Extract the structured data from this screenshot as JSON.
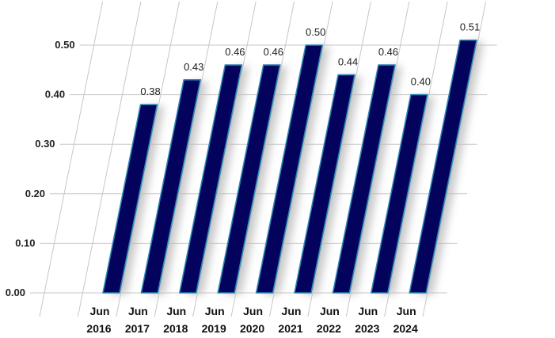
{
  "chart_data": {
    "type": "bar",
    "title": "",
    "xlabel": "",
    "ylabel": "",
    "categories": [
      [
        "Jun",
        "2016"
      ],
      [
        "Jun",
        "2017"
      ],
      [
        "Jun",
        "2018"
      ],
      [
        "Jun",
        "2019"
      ],
      [
        "Jun",
        "2020"
      ],
      [
        "Jun",
        "2021"
      ],
      [
        "Jun",
        "2022"
      ],
      [
        "Jun",
        "2023"
      ],
      [
        "Jun",
        "2024"
      ]
    ],
    "values": [
      0.38,
      0.43,
      0.46,
      0.46,
      0.5,
      0.44,
      0.46,
      0.4,
      0.51
    ],
    "value_labels": [
      "0.38",
      "0.43",
      "0.46",
      "0.46",
      "0.50",
      "0.44",
      "0.46",
      "0.40",
      "0.51"
    ],
    "ylim": [
      0,
      0.5
    ],
    "yticks": [
      "0.00",
      "0.10",
      "0.20",
      "0.30",
      "0.40",
      "0.50"
    ],
    "grid": true,
    "legend": "none",
    "style": "slanted-3d",
    "colors": {
      "bar": "#03035e",
      "bar_edge": "#2a86b4",
      "grid": "#c7c7c7",
      "shadow": "#b9b9b9"
    }
  }
}
